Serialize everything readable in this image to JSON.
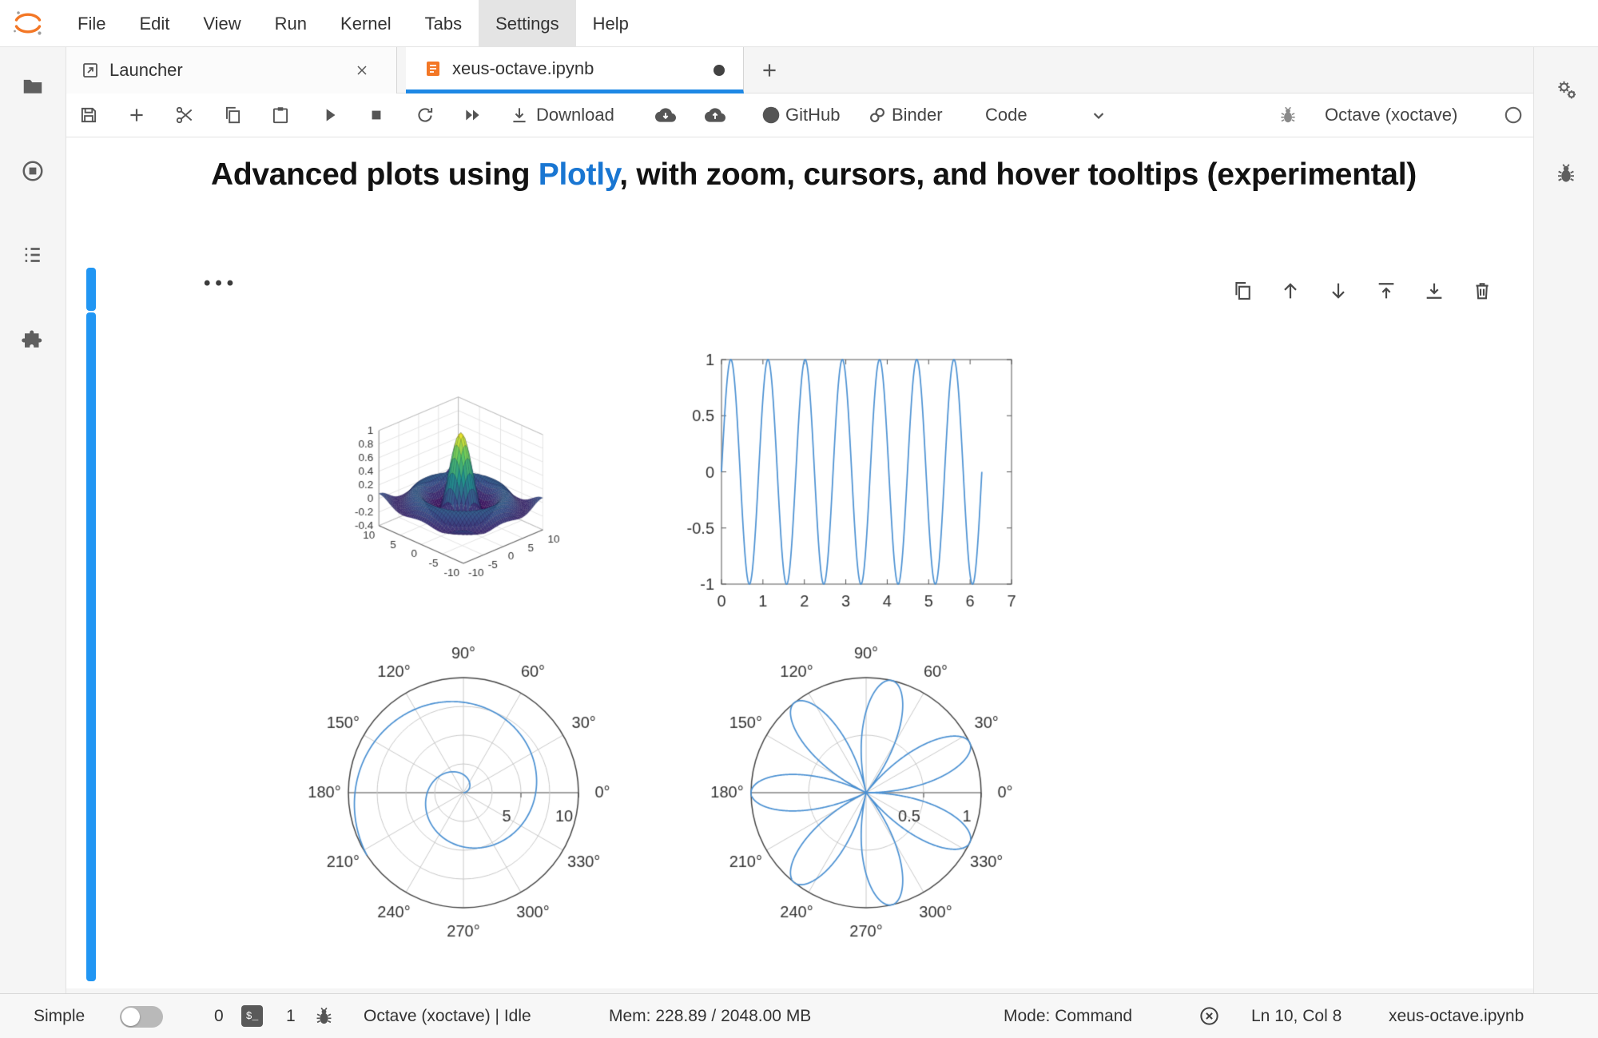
{
  "menubar": {
    "items": [
      "File",
      "Edit",
      "View",
      "Run",
      "Kernel",
      "Tabs",
      "Settings",
      "Help"
    ],
    "active_index": 6
  },
  "tabs": [
    {
      "label": "Launcher"
    },
    {
      "label": "xeus-octave.ipynb",
      "dirty": true
    }
  ],
  "toolbar": {
    "download": "Download",
    "github": "GitHub",
    "binder": "Binder",
    "cell_type": "Code",
    "kernel": "Octave (xoctave)"
  },
  "notebook": {
    "heading_pre": "Advanced plots using ",
    "heading_link": "Plotly",
    "heading_post": ", with zoom, cursors, and hover tooltips (experimental)",
    "ellipsis": "•••"
  },
  "statusbar": {
    "simple": "Simple",
    "terminal_count": "0",
    "terminal_badge": "$_",
    "kernel_count": "1",
    "kernel_status": "Octave (xoctave) | Idle",
    "memory": "Mem: 228.89 / 2048.00 MB",
    "mode": "Mode: Command",
    "cursor": "Ln 10, Col 8",
    "filename": "xeus-octave.ipynb"
  },
  "colors": {
    "accent": "#1e88e5",
    "cell_bar": "#2196f3",
    "plot_line": "#4a90d2",
    "logo_orange": "#f37726"
  },
  "chart_data": [
    {
      "id": "surface",
      "type": "surface3d",
      "function": "z = sin(r)/r (sombrero)",
      "x_range": [
        -10,
        10
      ],
      "y_range": [
        -10,
        10
      ],
      "z_range": [
        -0.4,
        1
      ],
      "z_tick_labels": [
        "1",
        "0.8",
        "0.6",
        "0.4",
        "0.2",
        "0",
        "-0.2",
        "-0.4"
      ],
      "z_tick_values": [
        1,
        0.8,
        0.6,
        0.4,
        0.2,
        0,
        -0.2,
        -0.4
      ],
      "xy_tick_labels": [
        "-10",
        "-5",
        "0",
        "5",
        "10"
      ],
      "xy_tick_values": [
        -10,
        -5,
        0,
        5,
        10
      ],
      "colormap": "viridis"
    },
    {
      "id": "sine",
      "type": "line",
      "function": "y = sin(7x), x in [0, 2*pi]",
      "freq": 7,
      "x_end": 6.2832,
      "x_range": [
        0,
        7
      ],
      "y_range": [
        -1,
        1
      ],
      "x_tick_labels": [
        "0",
        "1",
        "2",
        "3",
        "4",
        "5",
        "6",
        "7"
      ],
      "x_tick_values": [
        0,
        1,
        2,
        3,
        4,
        5,
        6,
        7
      ],
      "y_tick_labels": [
        "1",
        "0.5",
        "0",
        "-0.5",
        "-1"
      ],
      "y_tick_values": [
        1,
        0.5,
        0,
        -0.5,
        -1
      ],
      "color": "#4a90d2"
    },
    {
      "id": "spiral",
      "type": "polar",
      "curve": "spiral",
      "function": "r = theta, theta in [0, 10]",
      "theta_max": 10,
      "r_max": 10,
      "grid_r": [
        2.5,
        5,
        7.5
      ],
      "r_tick_labels": [
        "5",
        "10"
      ],
      "r_tick_values": [
        5,
        10
      ],
      "angle_labels": [
        "0°",
        "30°",
        "60°",
        "90°",
        "120°",
        "150°",
        "180°",
        "210°",
        "240°",
        "270°",
        "300°",
        "330°"
      ],
      "color": "#4a90d2"
    },
    {
      "id": "rose",
      "type": "polar",
      "curve": "rose",
      "function": "r = |sin(3.5*theta)|, theta in [0, 2*pi]",
      "theta_max": 6.2832,
      "r_max": 1,
      "grid_r": [
        0.5
      ],
      "r_tick_labels": [
        "0.5",
        "1"
      ],
      "r_tick_values": [
        0.5,
        1
      ],
      "angle_labels": [
        "0°",
        "30°",
        "60°",
        "90°",
        "120°",
        "150°",
        "180°",
        "210°",
        "240°",
        "270°",
        "300°",
        "330°"
      ],
      "color": "#4a90d2"
    }
  ]
}
